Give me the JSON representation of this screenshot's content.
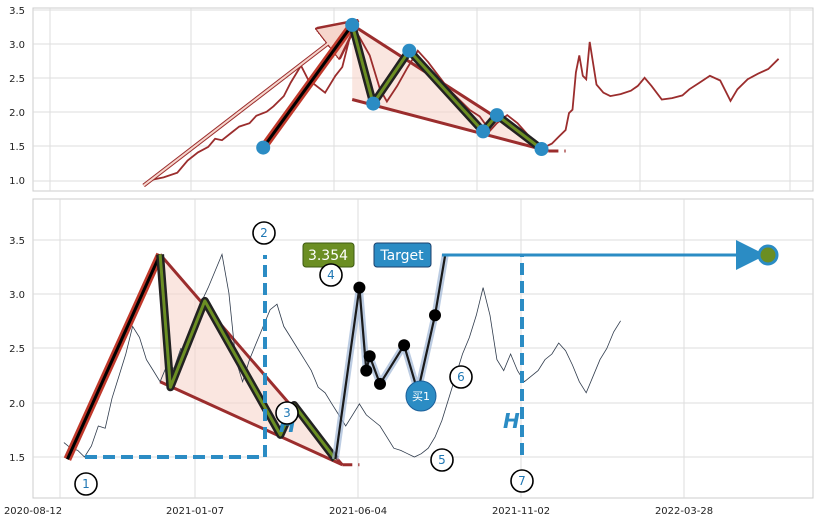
{
  "chart_data": [
    {
      "type": "line",
      "panel": "top",
      "ylim": [
        0.85,
        3.55
      ],
      "yticks": [
        "1.0",
        "1.5",
        "2.0",
        "2.5",
        "3.0",
        "3.5"
      ],
      "grid": true,
      "series": [
        {
          "kind": "price",
          "color": "#9b2d2d",
          "points": [
            [
              2020.872,
              0.95
            ],
            [
              2020.9,
              1.02
            ],
            [
              2020.93,
              1.05
            ],
            [
              2020.97,
              1.12
            ],
            [
              2021.0,
              1.3
            ],
            [
              2021.03,
              1.42
            ],
            [
              2021.06,
              1.5
            ],
            [
              2021.08,
              1.62
            ],
            [
              2021.1,
              1.6
            ],
            [
              2021.13,
              1.72
            ],
            [
              2021.15,
              1.8
            ],
            [
              2021.18,
              1.85
            ],
            [
              2021.2,
              1.96
            ],
            [
              2021.23,
              2.02
            ],
            [
              2021.25,
              2.1
            ],
            [
              2021.28,
              2.25
            ],
            [
              2021.3,
              2.45
            ],
            [
              2021.33,
              2.7
            ],
            [
              2021.35,
              2.5
            ],
            [
              2021.38,
              2.38
            ],
            [
              2021.4,
              2.3
            ],
            [
              2021.43,
              2.55
            ],
            [
              2021.45,
              2.68
            ],
            [
              2021.48,
              3.28
            ],
            [
              2021.5,
              3.12
            ],
            [
              2021.53,
              2.85
            ],
            [
              2021.56,
              2.35
            ],
            [
              2021.58,
              2.17
            ],
            [
              2021.61,
              2.4
            ],
            [
              2021.64,
              2.67
            ],
            [
              2021.67,
              2.92
            ],
            [
              2021.7,
              2.75
            ],
            [
              2021.73,
              2.55
            ],
            [
              2021.76,
              2.35
            ],
            [
              2021.79,
              2.2
            ],
            [
              2021.82,
              2.05
            ],
            [
              2021.85,
              1.95
            ],
            [
              2021.88,
              1.74
            ],
            [
              2021.9,
              1.85
            ],
            [
              2021.93,
              1.97
            ],
            [
              2021.96,
              1.85
            ],
            [
              2021.99,
              1.68
            ],
            [
              2022.02,
              1.55
            ],
            [
              2022.04,
              1.5
            ],
            [
              2022.06,
              1.55
            ],
            [
              2022.08,
              1.65
            ],
            [
              2022.1,
              1.75
            ],
            [
              2022.11,
              2.0
            ],
            [
              2022.12,
              2.05
            ],
            [
              2022.13,
              2.6
            ],
            [
              2022.14,
              2.85
            ],
            [
              2022.15,
              2.55
            ],
            [
              2022.16,
              2.5
            ],
            [
              2022.17,
              3.05
            ],
            [
              2022.19,
              2.42
            ],
            [
              2022.21,
              2.3
            ],
            [
              2022.23,
              2.25
            ],
            [
              2022.26,
              2.28
            ],
            [
              2022.29,
              2.33
            ],
            [
              2022.31,
              2.4
            ],
            [
              2022.33,
              2.52
            ],
            [
              2022.35,
              2.4
            ],
            [
              2022.38,
              2.2
            ],
            [
              2022.41,
              2.22
            ],
            [
              2022.44,
              2.26
            ],
            [
              2022.46,
              2.35
            ],
            [
              2022.49,
              2.45
            ],
            [
              2022.52,
              2.55
            ],
            [
              2022.55,
              2.48
            ],
            [
              2022.58,
              2.18
            ],
            [
              2022.6,
              2.35
            ],
            [
              2022.63,
              2.5
            ],
            [
              2022.66,
              2.58
            ],
            [
              2022.69,
              2.65
            ],
            [
              2022.72,
              2.8
            ]
          ]
        },
        {
          "kind": "arrow",
          "color": "#e08060",
          "points": [
            [
              2020.872,
              0.93
            ],
            [
              2021.479,
              3.3
            ]
          ]
        },
        {
          "kind": "wave",
          "color": "#c0392b",
          "points": [
            [
              2021.22,
              1.49
            ],
            [
              2021.479,
              3.3
            ]
          ]
        },
        {
          "kind": "wave",
          "color": "#6b8e23",
          "points": [
            [
              2021.479,
              3.3
            ],
            [
              2021.54,
              2.14
            ],
            [
              2021.645,
              2.92
            ],
            [
              2021.86,
              1.73
            ],
            [
              2021.9,
              1.97
            ],
            [
              2022.03,
              1.47
            ]
          ]
        },
        {
          "kind": "wedge",
          "color": "#9b2d2d",
          "points": [
            [
              2021.479,
              3.3
            ],
            [
              2022.05,
              1.44
            ]
          ],
          "lower": [
            [
              2021.479,
              2.2
            ],
            [
              2022.05,
              1.44
            ]
          ]
        },
        {
          "kind": "extension",
          "color": "#9b2d2d",
          "points": [
            [
              2022.05,
              1.44
            ],
            [
              2022.1,
              1.44
            ]
          ]
        },
        {
          "kind": "markers",
          "color": "#2b8cc4",
          "points": [
            [
              2021.22,
              1.49
            ],
            [
              2021.479,
              3.3
            ],
            [
              2021.54,
              2.14
            ],
            [
              2021.645,
              2.92
            ],
            [
              2021.86,
              1.73
            ],
            [
              2021.9,
              1.97
            ],
            [
              2022.03,
              1.47
            ]
          ]
        }
      ]
    },
    {
      "type": "line",
      "panel": "bottom",
      "ylim": [
        1.15,
        3.85
      ],
      "yticks": [
        "1.5",
        "2.0",
        "2.5",
        "3.0",
        "3.5"
      ],
      "xticks": [
        "2020-08-12",
        "2021-01-07",
        "2021-06-04",
        "2021-11-02",
        "2022-03-28"
      ],
      "xtick_values": [
        2020.61,
        2021.02,
        2021.42,
        2021.84,
        2022.24
      ],
      "grid": true,
      "series": [
        {
          "kind": "price",
          "color": "#2f3b4c",
          "points": [
            [
              2020.64,
              1.65
            ],
            [
              2020.66,
              1.6
            ],
            [
              2020.68,
              1.58
            ],
            [
              2020.7,
              1.52
            ],
            [
              2020.72,
              1.62
            ],
            [
              2020.74,
              1.8
            ],
            [
              2020.76,
              1.78
            ],
            [
              2020.78,
              2.05
            ],
            [
              2020.8,
              2.25
            ],
            [
              2020.82,
              2.45
            ],
            [
              2020.84,
              2.7
            ],
            [
              2020.86,
              2.6
            ],
            [
              2020.88,
              2.4
            ],
            [
              2020.9,
              2.3
            ],
            [
              2020.92,
              2.2
            ],
            [
              2020.94,
              2.35
            ],
            [
              2020.96,
              2.32
            ],
            [
              2020.98,
              2.5
            ],
            [
              2021.0,
              2.45
            ],
            [
              2021.02,
              2.78
            ],
            [
              2021.04,
              2.92
            ],
            [
              2021.06,
              3.05
            ],
            [
              2021.08,
              3.2
            ],
            [
              2021.1,
              3.35
            ],
            [
              2021.12,
              3.0
            ],
            [
              2021.14,
              2.4
            ],
            [
              2021.16,
              2.2
            ],
            [
              2021.18,
              2.4
            ],
            [
              2021.2,
              2.55
            ],
            [
              2021.22,
              2.7
            ],
            [
              2021.24,
              2.85
            ],
            [
              2021.26,
              2.9
            ],
            [
              2021.28,
              2.7
            ],
            [
              2021.3,
              2.6
            ],
            [
              2021.32,
              2.5
            ],
            [
              2021.34,
              2.4
            ],
            [
              2021.36,
              2.3
            ],
            [
              2021.38,
              2.15
            ],
            [
              2021.4,
              2.1
            ],
            [
              2021.42,
              2.0
            ],
            [
              2021.44,
              1.9
            ],
            [
              2021.46,
              1.8
            ],
            [
              2021.48,
              1.9
            ],
            [
              2021.5,
              2.0
            ],
            [
              2021.52,
              1.9
            ],
            [
              2021.54,
              1.85
            ],
            [
              2021.56,
              1.8
            ],
            [
              2021.58,
              1.7
            ],
            [
              2021.6,
              1.6
            ],
            [
              2021.62,
              1.58
            ],
            [
              2021.64,
              1.55
            ],
            [
              2021.66,
              1.52
            ],
            [
              2021.68,
              1.55
            ],
            [
              2021.7,
              1.6
            ],
            [
              2021.72,
              1.7
            ],
            [
              2021.74,
              1.85
            ],
            [
              2021.76,
              2.05
            ],
            [
              2021.78,
              2.25
            ],
            [
              2021.8,
              2.45
            ],
            [
              2021.82,
              2.6
            ],
            [
              2021.84,
              2.8
            ],
            [
              2021.86,
              3.05
            ],
            [
              2021.88,
              2.8
            ],
            [
              2021.9,
              2.4
            ],
            [
              2021.92,
              2.3
            ],
            [
              2021.94,
              2.45
            ],
            [
              2021.96,
              2.3
            ],
            [
              2021.98,
              2.2
            ],
            [
              2022.0,
              2.25
            ],
            [
              2022.02,
              2.3
            ],
            [
              2022.04,
              2.4
            ],
            [
              2022.06,
              2.45
            ],
            [
              2022.08,
              2.55
            ],
            [
              2022.1,
              2.48
            ],
            [
              2022.12,
              2.35
            ],
            [
              2022.14,
              2.2
            ],
            [
              2022.16,
              2.1
            ],
            [
              2022.18,
              2.25
            ],
            [
              2022.2,
              2.4
            ],
            [
              2022.22,
              2.5
            ],
            [
              2022.24,
              2.65
            ],
            [
              2022.26,
              2.75
            ]
          ]
        },
        {
          "kind": "wave",
          "color": "#c0392b",
          "points": [
            [
              2020.65,
              1.5
            ],
            [
              2020.92,
              3.35
            ]
          ]
        },
        {
          "kind": "wave",
          "color": "#6b8e23",
          "points": [
            [
              2020.92,
              3.35
            ],
            [
              2020.95,
              2.15
            ],
            [
              2021.05,
              2.93
            ],
            [
              2021.27,
              1.72
            ],
            [
              2021.31,
              1.99
            ],
            [
              2021.43,
              1.5
            ]
          ]
        },
        {
          "kind": "wedge",
          "color": "#9b2d2d",
          "points": [
            [
              2020.92,
              3.35
            ],
            [
              2021.45,
              1.45
            ]
          ],
          "lower": [
            [
              2020.92,
              2.2
            ],
            [
              2021.45,
              1.45
            ]
          ]
        },
        {
          "kind": "extension",
          "color": "#9b2d2d",
          "points": [
            [
              2021.45,
              1.45
            ],
            [
              2021.5,
              1.45
            ]
          ]
        },
        {
          "kind": "projection",
          "color": "#1a1a1a",
          "points": [
            [
              2021.43,
              1.5
            ],
            [
              2021.5,
              3.05
            ],
            [
              2021.52,
              2.3
            ],
            [
              2021.53,
              2.43
            ],
            [
              2021.56,
              2.18
            ],
            [
              2021.63,
              2.53
            ],
            [
              2021.67,
              2.11
            ],
            [
              2021.72,
              2.8
            ],
            [
              2021.75,
              3.35
            ]
          ]
        },
        {
          "kind": "markers",
          "color": "#000000",
          "points": [
            [
              2021.5,
              3.05
            ],
            [
              2021.52,
              2.3
            ],
            [
              2021.53,
              2.43
            ],
            [
              2021.56,
              2.18
            ],
            [
              2021.63,
              2.53
            ],
            [
              2021.67,
              2.11
            ],
            [
              2021.72,
              2.8
            ]
          ]
        }
      ],
      "annotations": {
        "price_label": "3.354",
        "target_label": "Target",
        "buy_label": "买1",
        "h_label": "H",
        "wave_numbers": [
          "1",
          "2",
          "3",
          "4",
          "5",
          "6",
          "7"
        ]
      }
    }
  ]
}
